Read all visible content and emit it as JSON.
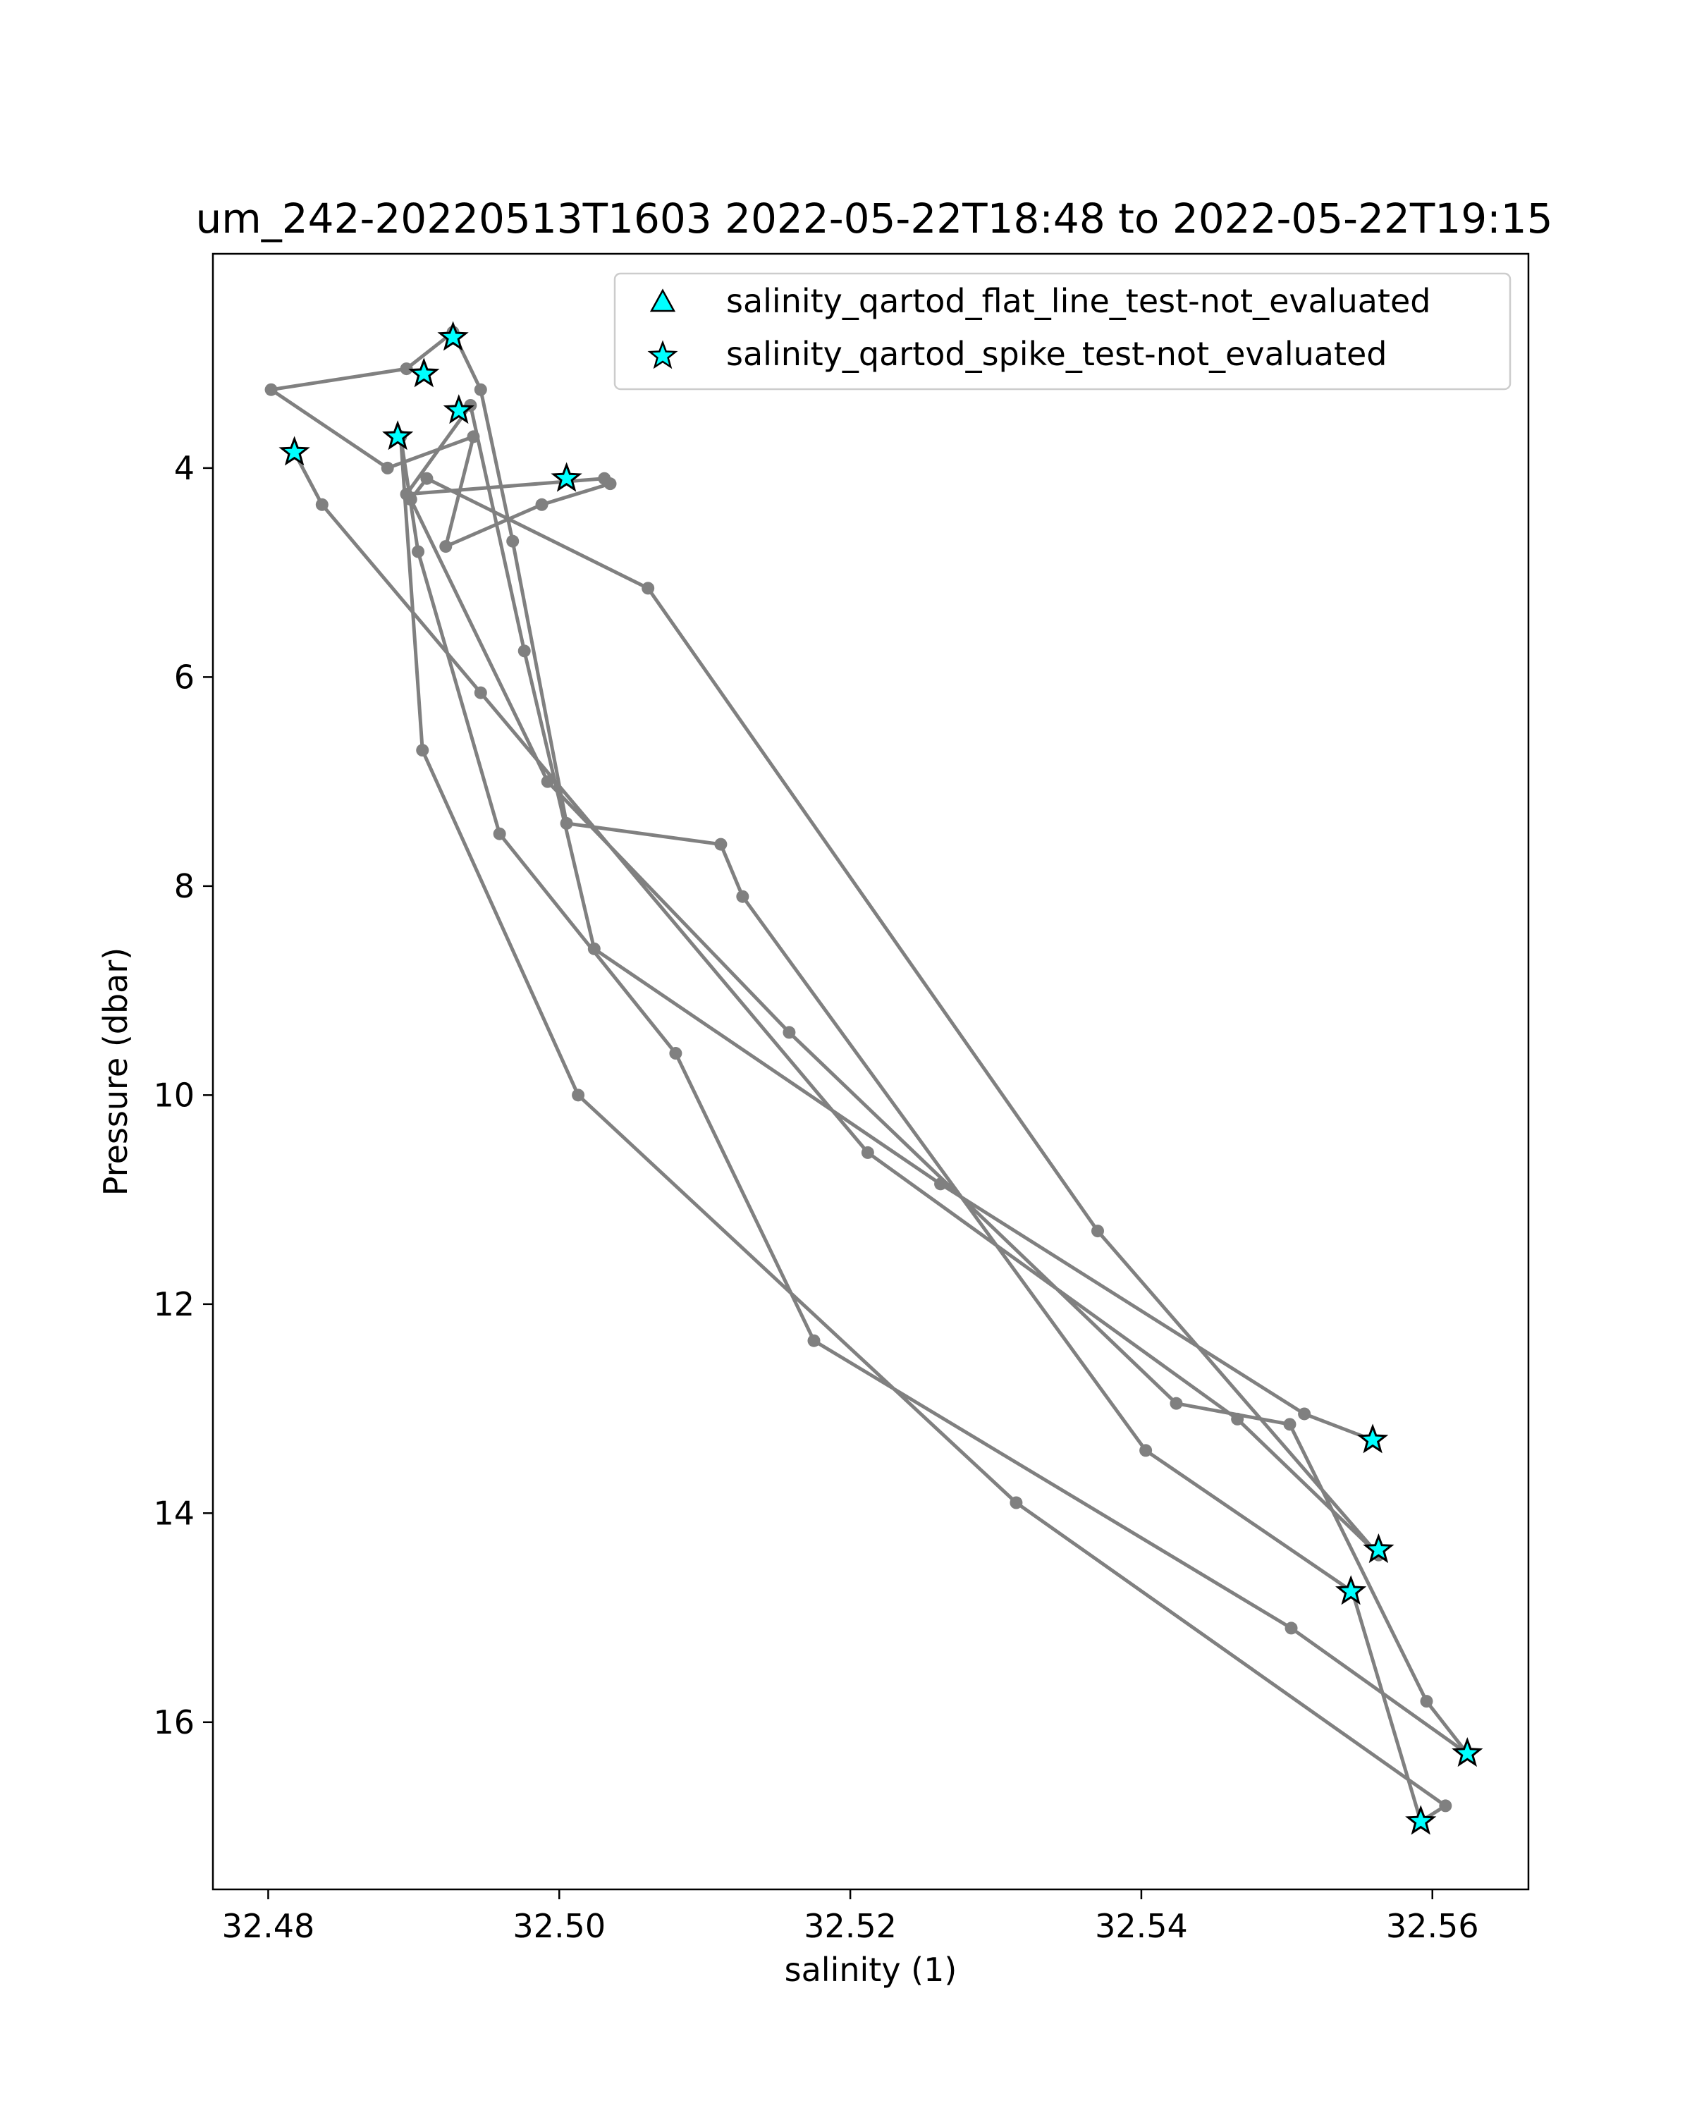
{
  "chart_data": {
    "type": "line",
    "title": "um_242-20220513T1603 2022-05-22T18:48 to 2022-05-22T19:15",
    "xlabel": "salinity (1)",
    "ylabel": "Pressure (dbar)",
    "xlim": [
      32.4762,
      32.5666
    ],
    "ylim": [
      17.6,
      1.95
    ],
    "y_inverted": true,
    "grid": false,
    "legend_position": "top-right",
    "xticks": [
      32.48,
      32.5,
      32.52,
      32.54,
      32.56
    ],
    "xtick_labels": [
      "32.48",
      "32.50",
      "32.52",
      "32.54",
      "32.56"
    ],
    "yticks": [
      4,
      6,
      8,
      10,
      12,
      14,
      16
    ],
    "ytick_labels": [
      "4",
      "6",
      "8",
      "10",
      "12",
      "14",
      "16"
    ],
    "line_color": "#808080",
    "marker_color": "#00ffff",
    "profile": {
      "x": [
        32.5559,
        32.5512,
        32.5262,
        32.5024,
        32.4976,
        32.4939,
        32.4895,
        32.5031,
        32.5035,
        32.4988,
        32.4922,
        32.4941,
        32.4882,
        32.4802,
        32.4895,
        32.4927,
        32.4946,
        32.4968,
        32.5005,
        32.5111,
        32.5126,
        32.5403,
        32.5545,
        32.5592,
        32.5609,
        32.5314,
        32.5013,
        32.4906,
        32.4891,
        32.4903,
        32.4959,
        32.508,
        32.5175,
        32.5503,
        32.5624,
        32.5596,
        32.5502,
        32.5424,
        32.5158,
        32.4992,
        32.4898,
        32.4909,
        32.5061,
        32.537,
        32.5563,
        32.5466,
        32.5212,
        32.4946,
        32.4837,
        32.4818
      ],
      "y": [
        13.3,
        13.05,
        10.85,
        8.6,
        5.75,
        3.4,
        4.25,
        4.1,
        4.15,
        4.35,
        4.75,
        3.7,
        4.0,
        3.25,
        3.05,
        2.7,
        3.25,
        4.7,
        7.4,
        7.6,
        8.1,
        13.4,
        14.75,
        16.95,
        16.8,
        13.9,
        10.0,
        6.7,
        3.7,
        4.8,
        7.5,
        9.6,
        12.35,
        15.1,
        16.3,
        15.8,
        13.15,
        12.95,
        9.4,
        7.0,
        4.3,
        4.1,
        5.15,
        11.3,
        14.4,
        13.1,
        10.55,
        6.15,
        4.35,
        3.85
      ]
    },
    "flagged_points": {
      "x": [
        32.5559,
        32.4931,
        32.5005,
        32.4927,
        32.4907,
        32.4818,
        32.4889,
        32.5544,
        32.5592,
        32.5624,
        32.5563
      ],
      "y": [
        13.3,
        3.45,
        4.1,
        2.75,
        3.1,
        3.85,
        3.7,
        14.75,
        16.95,
        16.3,
        14.35
      ]
    },
    "legend": [
      {
        "label": "salinity_qartod_flat_line_test-not_evaluated",
        "marker": "triangle",
        "color": "#00ffff"
      },
      {
        "label": "salinity_qartod_spike_test-not_evaluated",
        "marker": "star",
        "color": "#00ffff"
      }
    ]
  }
}
